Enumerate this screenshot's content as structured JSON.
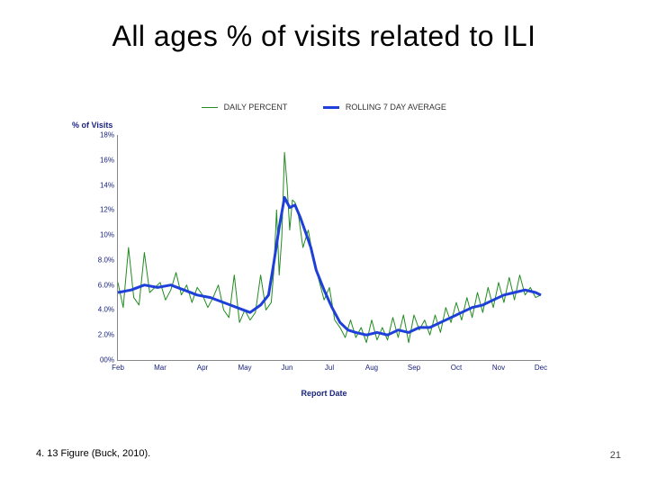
{
  "slide": {
    "title": "All ages % of visits related to ILI",
    "caption": "4. 13 Figure (Buck, 2010).",
    "page_number": "21"
  },
  "chart": {
    "type": "line",
    "y_axis_title": "% of Visits",
    "x_axis_title": "Report Date",
    "background_color": "#ffffff",
    "axis_color": "#888888",
    "tick_label_color": "#1a237e",
    "tick_fontsize": 8,
    "axis_title_fontsize": 9,
    "ylim": [
      0,
      18
    ],
    "yticks": [
      0,
      2,
      4,
      6,
      8,
      10,
      12,
      14,
      16,
      18
    ],
    "ytick_labels": [
      "00%",
      "2.0%",
      "4.0%",
      "6.0%",
      "8.0%",
      "10%",
      "12%",
      "14%",
      "16%",
      "18%"
    ],
    "xtick_labels": [
      "Feb",
      "Mar",
      "Apr",
      "May",
      "Jun",
      "Jul",
      "Aug",
      "Sep",
      "Oct",
      "Nov",
      "Dec"
    ],
    "legend": {
      "items": [
        {
          "label": "DAILY PERCENT",
          "color": "#228B22",
          "width": 1
        },
        {
          "label": "ROLLING 7 DAY AVERAGE",
          "color": "#1E3FD8",
          "width": 3
        }
      ]
    },
    "series": {
      "daily_percent": {
        "color": "#228B22",
        "line_width": 1,
        "x": [
          0,
          4,
          8,
          12,
          16,
          20,
          24,
          28,
          32,
          36,
          40,
          44,
          48,
          52,
          56,
          60,
          64,
          68,
          72,
          76,
          80,
          84,
          88,
          92,
          96,
          100,
          104,
          108,
          112,
          116,
          118,
          120,
          122,
          124,
          126,
          128,
          130,
          132,
          134,
          136,
          140,
          144,
          148,
          152,
          156,
          160,
          164,
          168,
          172,
          176,
          180,
          184,
          188,
          192,
          196,
          200,
          204,
          208,
          212,
          216,
          220,
          224,
          228,
          232,
          236,
          240,
          244,
          248,
          252,
          256,
          260,
          264,
          268,
          272,
          276,
          280,
          284,
          288,
          292,
          296,
          300,
          304,
          308,
          312,
          316,
          320
        ],
        "y": [
          6.2,
          4.2,
          9.0,
          5.0,
          4.4,
          8.6,
          5.4,
          5.8,
          6.2,
          4.8,
          5.6,
          7.0,
          5.2,
          6.0,
          4.6,
          5.8,
          5.2,
          4.2,
          5.0,
          6.0,
          4.0,
          3.4,
          6.8,
          3.0,
          4.0,
          3.2,
          3.8,
          6.8,
          4.0,
          4.6,
          7.2,
          12.0,
          6.8,
          9.8,
          16.6,
          14.0,
          10.4,
          12.8,
          12.6,
          12.0,
          9.0,
          10.4,
          8.0,
          6.4,
          4.8,
          5.8,
          3.2,
          2.6,
          1.8,
          3.2,
          1.8,
          2.6,
          1.4,
          3.2,
          1.6,
          2.6,
          1.6,
          3.4,
          1.8,
          3.6,
          1.4,
          3.6,
          2.4,
          3.2,
          2.0,
          3.6,
          2.2,
          4.2,
          3.0,
          4.6,
          3.2,
          5.0,
          3.4,
          5.4,
          3.8,
          5.8,
          4.2,
          6.2,
          4.6,
          6.6,
          4.8,
          6.8,
          5.2,
          5.8,
          5.0,
          5.2
        ]
      },
      "rolling_avg": {
        "color": "#1E3FD8",
        "line_width": 3,
        "x": [
          0,
          10,
          20,
          30,
          40,
          50,
          60,
          70,
          80,
          90,
          100,
          108,
          114,
          118,
          122,
          126,
          130,
          134,
          138,
          142,
          146,
          150,
          156,
          162,
          168,
          174,
          180,
          188,
          196,
          204,
          212,
          220,
          228,
          236,
          244,
          252,
          260,
          268,
          276,
          284,
          292,
          300,
          308,
          316,
          320
        ],
        "y": [
          5.4,
          5.6,
          6.0,
          5.8,
          6.0,
          5.6,
          5.2,
          5.0,
          4.6,
          4.2,
          3.8,
          4.4,
          5.2,
          7.8,
          10.6,
          13.0,
          12.2,
          12.4,
          11.4,
          10.2,
          9.0,
          7.2,
          5.6,
          4.2,
          3.0,
          2.4,
          2.2,
          2.0,
          2.2,
          2.0,
          2.4,
          2.2,
          2.6,
          2.6,
          3.0,
          3.4,
          3.8,
          4.2,
          4.4,
          4.8,
          5.2,
          5.4,
          5.6,
          5.4,
          5.2
        ]
      }
    }
  }
}
